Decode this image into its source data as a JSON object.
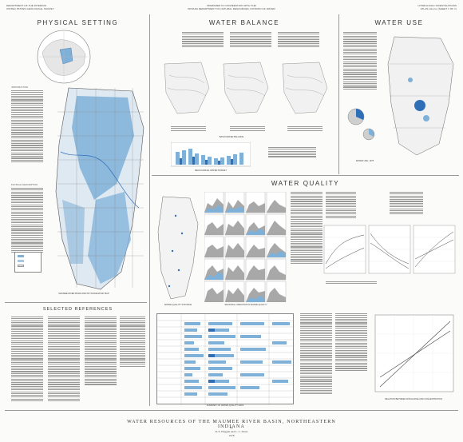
{
  "header": {
    "left_lines": [
      "DEPARTMENT OF THE INTERIOR",
      "UNITED STATES GEOLOGICAL SURVEY"
    ],
    "center_lines": [
      "PREPARED IN COOPERATION WITH THE",
      "INDIANA DEPARTMENT OF NATURAL RESOURCES, DIVISION OF WATER"
    ],
    "right_lines": [
      "HYDROLOGIC INVESTIGATIONS",
      "ATLAS HA-xxx (SHEET 1 OF 1)"
    ]
  },
  "sections": {
    "physical_setting": "PHYSICAL SETTING",
    "water_balance": "WATER BALANCE",
    "water_use": "WATER USE",
    "water_quality": "WATER QUALITY",
    "selected_references": "SELECTED REFERENCES"
  },
  "physical_setting": {
    "intro_heading": "INTRODUCTION",
    "physio_heading": "PHYSICAL DESCRIPTION",
    "map_caption": "MAUMEE RIVER BASIN AND PHYSIOGRAPHIC MAP"
  },
  "water_balance": {
    "caption_1": "BASIN WATER BALANCE",
    "caption_2": "MEAN ANNUAL WATER BUDGET"
  },
  "water_use": {
    "caption": "WATER USE, 1975"
  },
  "water_quality": {
    "caption_map": "WATER-QUALITY STATIONS",
    "caption_charts": "SEASONAL VARIATION IN WATER QUALITY",
    "caption_table": "SUMMARY OF WATER-QUALITY DATA",
    "caption_line": "RELATION BETWEEN DISCHARGE AND CONCENTRATION"
  },
  "footer": {
    "title": "WATER RESOURCES OF THE MAUMEE RIVER BASIN, NORTHEASTERN INDIANA",
    "by": "By",
    "authors": "R. E. Hoggatt and L. C. Davis",
    "year": "1978"
  },
  "colors": {
    "water_blue": "#7fb0d8",
    "dark_blue": "#2f6fb8",
    "grey": "#9a9a9a"
  }
}
